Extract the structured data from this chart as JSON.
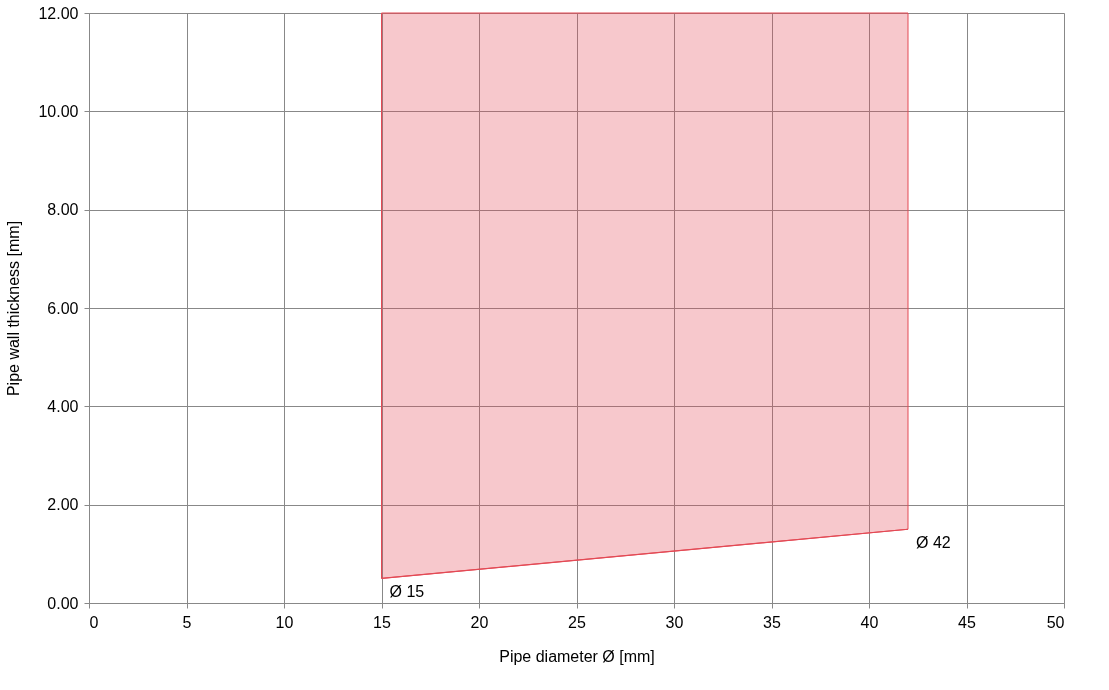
{
  "chart_data": {
    "type": "line",
    "xlabel": "Pipe diameter Ø [mm]",
    "ylabel": "Pipe wall thickness [mm]",
    "series": [
      {
        "color": "#e34a55",
        "x": [
          15,
          42
        ],
        "values": [
          0.5,
          1.5
        ],
        "lower": [
          0.5,
          1.5
        ],
        "upper": [
          12,
          12
        ]
      }
    ],
    "xlim": [
      0,
      50
    ],
    "xticks": [
      0,
      5,
      10,
      15,
      20,
      25,
      30,
      35,
      40,
      45,
      50
    ],
    "ylim": [
      0,
      12
    ],
    "yticks": [
      {
        "value": 0,
        "label": "0.00"
      },
      {
        "value": 2,
        "label": "2.00"
      },
      {
        "value": 4,
        "label": "4.00"
      },
      {
        "value": 6,
        "label": "6.00"
      },
      {
        "value": 8,
        "label": "8.00"
      },
      {
        "value": 10,
        "label": "10.00"
      },
      {
        "value": 12,
        "label": "12.00"
      }
    ],
    "annotations": [
      {
        "text": "Ø 15",
        "x": 15,
        "y": 0.5
      },
      {
        "text": "Ø 42",
        "x": 42,
        "y": 1.5
      }
    ],
    "grid": true
  }
}
